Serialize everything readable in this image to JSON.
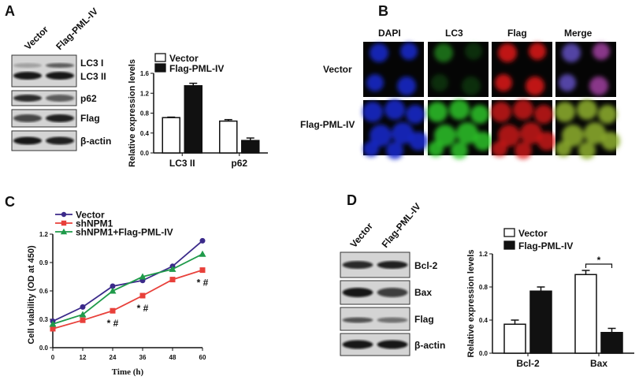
{
  "panels": {
    "A": {
      "label": "A",
      "lanes": [
        "Vector",
        "Flag-PML-IV"
      ],
      "blot_labels": [
        "LC3  I",
        "LC3  II",
        "p62",
        "Flag",
        "β-actin"
      ]
    },
    "B": {
      "label": "B",
      "columns": [
        "DAPI",
        "LC3",
        "Flag",
        "Merge"
      ],
      "rows": [
        "Vector",
        "Flag-PML-IV"
      ],
      "channel_colors": {
        "DAPI": "#1a2bd0",
        "LC3": "#2fd02a",
        "Flag": "#e01818"
      }
    },
    "C": {
      "label": "C"
    },
    "D": {
      "label": "D",
      "lanes": [
        "Vector",
        "Flag-PML-IV"
      ],
      "blot_labels": [
        "Bcl-2",
        "Bax",
        "Flag",
        "β-actin"
      ]
    }
  },
  "chart_data": [
    {
      "id": "A",
      "type": "bar",
      "ylabel": "Relative expression levels",
      "categories": [
        "LC3 II",
        "p62"
      ],
      "series": [
        {
          "name": "Vector",
          "values": [
            0.71,
            0.64
          ],
          "errors": [
            0.01,
            0.03
          ],
          "color": "#ffffff"
        },
        {
          "name": "Flag-PML-IV",
          "values": [
            1.35,
            0.25
          ],
          "errors": [
            0.05,
            0.05
          ],
          "color": "#111111"
        }
      ],
      "ylim": [
        0,
        1.6
      ],
      "yticks": [
        "0.0",
        "0.4",
        "0.8",
        "1.2",
        "1.6"
      ],
      "legend": "top-left"
    },
    {
      "id": "C",
      "type": "line",
      "xlabel": "Time (h)",
      "ylabel": "Cell viability (OD at 450)",
      "x": [
        0,
        12,
        24,
        36,
        48,
        60
      ],
      "xticks": [
        "0",
        "12",
        "24",
        "36",
        "48",
        "60"
      ],
      "yticks": [
        "0.0",
        "0.3",
        "0.6",
        "0.9",
        "1.2"
      ],
      "ylim": [
        0,
        1.2
      ],
      "series": [
        {
          "name": "Vector",
          "values": [
            0.28,
            0.43,
            0.65,
            0.71,
            0.86,
            1.13
          ],
          "color": "#3b2a8a",
          "marker": "circle"
        },
        {
          "name": "shNPM1",
          "values": [
            0.2,
            0.29,
            0.39,
            0.55,
            0.72,
            0.82
          ],
          "color": "#e8403a",
          "marker": "square"
        },
        {
          "name": "shNPM1+Flag-PML-IV",
          "values": [
            0.25,
            0.35,
            0.6,
            0.75,
            0.83,
            0.99
          ],
          "color": "#1f9a4a",
          "marker": "triangle"
        }
      ],
      "annotations": [
        {
          "x": 24,
          "text": "* #"
        },
        {
          "x": 36,
          "text": "* #"
        },
        {
          "x": 60,
          "text": "* #"
        }
      ],
      "legend": "top-left"
    },
    {
      "id": "D",
      "type": "bar",
      "ylabel": "Relative expression levels",
      "categories": [
        "Bcl-2",
        "Bax"
      ],
      "series": [
        {
          "name": "Vector",
          "values": [
            0.35,
            0.95
          ],
          "errors": [
            0.05,
            0.05
          ],
          "color": "#ffffff"
        },
        {
          "name": "Flag-PML-IV",
          "values": [
            0.75,
            0.25
          ],
          "errors": [
            0.05,
            0.05
          ],
          "color": "#111111"
        }
      ],
      "ylim": [
        0,
        1.2
      ],
      "yticks": [
        "0.0",
        "0.4",
        "0.8",
        "1.2"
      ],
      "significance": {
        "category": "Bax",
        "text": "*"
      },
      "legend": "top-left"
    }
  ]
}
